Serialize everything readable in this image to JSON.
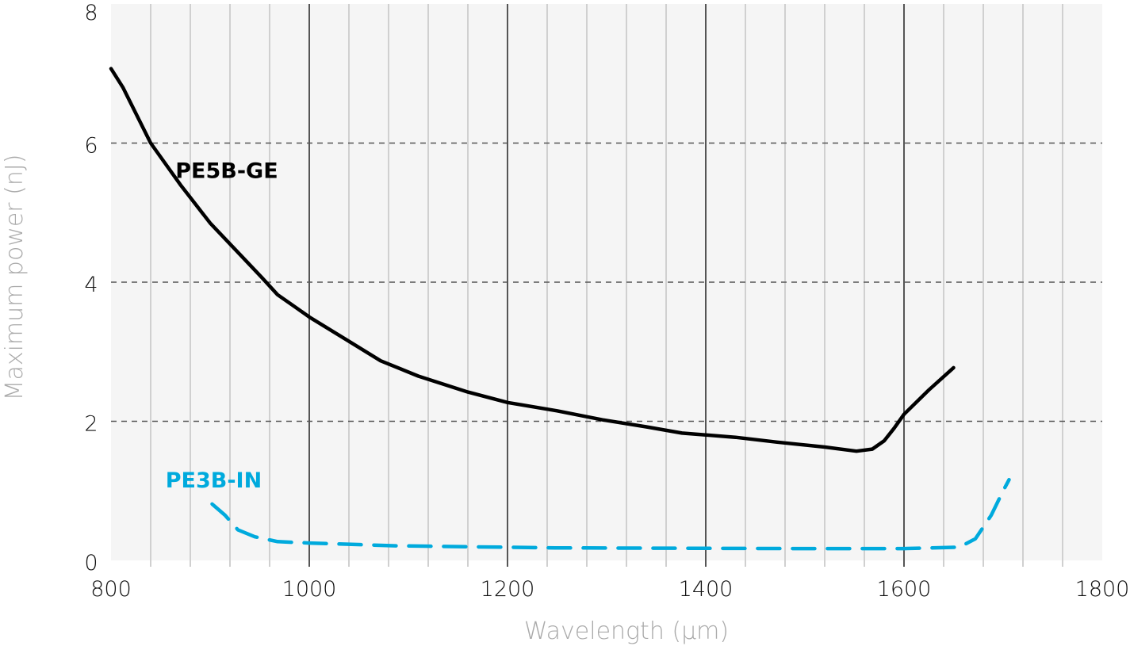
{
  "chart_data": {
    "type": "line",
    "title": "",
    "xlabel": "Wavelength (µm)",
    "ylabel": "Maximum power (nJ)",
    "xlim": [
      800,
      1800
    ],
    "ylim": [
      0,
      8
    ],
    "xticks": [
      800,
      1000,
      1200,
      1400,
      1600,
      1800
    ],
    "yticks": [
      0,
      2,
      4,
      6,
      8
    ],
    "grid": {
      "x_major_every": 200,
      "x_minor_every": 40,
      "y_dashed": [
        2,
        4,
        6
      ]
    },
    "background": "#f5f5f5",
    "series": [
      {
        "name": "PE5B-GE",
        "color": "#000000",
        "style": "solid",
        "x": [
          800,
          812,
          840,
          870,
          900,
          930,
          952,
          968,
          985,
          1000,
          1040,
          1072,
          1110,
          1160,
          1200,
          1250,
          1296,
          1340,
          1376,
          1430,
          1472,
          1520,
          1552,
          1568,
          1580,
          1590,
          1600,
          1625,
          1650
        ],
        "y": [
          7.07,
          6.8,
          6.0,
          5.4,
          4.85,
          4.4,
          4.07,
          3.82,
          3.65,
          3.5,
          3.15,
          2.87,
          2.65,
          2.42,
          2.27,
          2.15,
          2.02,
          1.92,
          1.83,
          1.77,
          1.7,
          1.63,
          1.57,
          1.6,
          1.72,
          1.9,
          2.1,
          2.45,
          2.77
        ]
      },
      {
        "name": "PE3B-IN",
        "color": "#00aadd",
        "style": "dashed",
        "x": [
          902,
          915,
          928,
          945,
          968,
          1000,
          1088,
          1248,
          1488,
          1600,
          1656,
          1672,
          1688,
          1700,
          1706
        ],
        "y": [
          0.81,
          0.65,
          0.44,
          0.34,
          0.27,
          0.25,
          0.21,
          0.18,
          0.17,
          0.17,
          0.19,
          0.31,
          0.65,
          1.0,
          1.16
        ]
      }
    ],
    "annotations": [
      {
        "text": "PE5B-GE",
        "x": 865,
        "y": 5.5,
        "color": "#000000"
      },
      {
        "text": "PE3B-IN",
        "x": 855,
        "y": 1.05,
        "color": "#00aadd"
      }
    ]
  }
}
